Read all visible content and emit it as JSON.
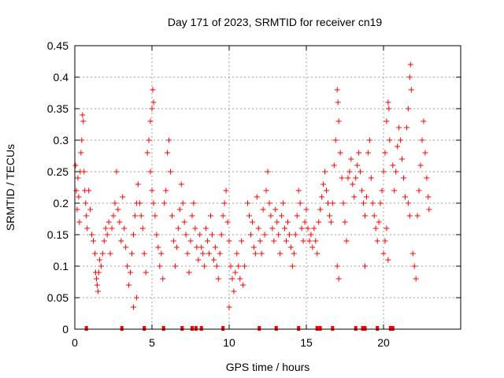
{
  "chart_data": {
    "type": "scatter",
    "title": "Day 171 of 2023, SRMTID for receiver cn19",
    "xlabel": "GPS time / hours",
    "ylabel": "SRMTID / TECUs",
    "xlim": [
      0,
      25
    ],
    "ylim": [
      0,
      0.45
    ],
    "x_ticks": [
      0,
      5,
      10,
      15,
      20
    ],
    "x_tick_labels": [
      "0",
      "5",
      "10",
      "15",
      "20"
    ],
    "y_ticks": [
      0,
      0.05,
      0.1,
      0.15,
      0.2,
      0.25,
      0.3,
      0.35,
      0.4,
      0.45
    ],
    "y_tick_labels": [
      "0",
      "0.05",
      "0.1",
      "0.15",
      "0.2",
      "0.25",
      "0.3",
      "0.35",
      "0.4",
      "0.45"
    ],
    "grid": true,
    "marker": "plus",
    "color": "#ff0000",
    "series": [
      {
        "name": "SRMTID",
        "points": [
          [
            0.05,
            0.26
          ],
          [
            0.1,
            0.22
          ],
          [
            0.15,
            0.19
          ],
          [
            0.2,
            0.24
          ],
          [
            0.25,
            0.21
          ],
          [
            0.3,
            0.17
          ],
          [
            0.35,
            0.25
          ],
          [
            0.4,
            0.28
          ],
          [
            0.45,
            0.3
          ],
          [
            0.5,
            0.34
          ],
          [
            0.55,
            0.33
          ],
          [
            0.6,
            0.25
          ],
          [
            0.65,
            0.22
          ],
          [
            0.7,
            0.2
          ],
          [
            0.75,
            0.18
          ],
          [
            0.8,
            0.16
          ],
          [
            0.9,
            0.22
          ],
          [
            1.0,
            0.19
          ],
          [
            1.1,
            0.15
          ],
          [
            1.2,
            0.14
          ],
          [
            1.3,
            0.12
          ],
          [
            1.35,
            0.09
          ],
          [
            1.4,
            0.08
          ],
          [
            1.45,
            0.07
          ],
          [
            1.5,
            0.06
          ],
          [
            1.55,
            0.09
          ],
          [
            1.6,
            0.11
          ],
          [
            1.7,
            0.1
          ],
          [
            1.8,
            0.12
          ],
          [
            1.9,
            0.14
          ],
          [
            2.0,
            0.16
          ],
          [
            2.1,
            0.15
          ],
          [
            2.2,
            0.17
          ],
          [
            2.3,
            0.12
          ],
          [
            2.4,
            0.16
          ],
          [
            2.5,
            0.18
          ],
          [
            2.6,
            0.2
          ],
          [
            2.7,
            0.25
          ],
          [
            2.8,
            0.19
          ],
          [
            2.9,
            0.17
          ],
          [
            3.0,
            0.14
          ],
          [
            3.1,
            0.21
          ],
          [
            3.2,
            0.16
          ],
          [
            3.3,
            0.13
          ],
          [
            3.4,
            0.1
          ],
          [
            3.5,
            0.07
          ],
          [
            3.6,
            0.09
          ],
          [
            3.7,
            0.12
          ],
          [
            3.8,
            0.15
          ],
          [
            3.9,
            0.18
          ],
          [
            4.0,
            0.2
          ],
          [
            4.1,
            0.23
          ],
          [
            4.2,
            0.2
          ],
          [
            4.3,
            0.18
          ],
          [
            4.4,
            0.16
          ],
          [
            4.5,
            0.12
          ],
          [
            4.6,
            0.09
          ],
          [
            3.8,
            0.035
          ],
          [
            4.0,
            0.05
          ],
          [
            4.7,
            0.28
          ],
          [
            4.8,
            0.3
          ],
          [
            4.9,
            0.33
          ],
          [
            5.0,
            0.35
          ],
          [
            5.05,
            0.38
          ],
          [
            5.1,
            0.36
          ],
          [
            4.9,
            0.25
          ],
          [
            5.0,
            0.22
          ],
          [
            5.1,
            0.2
          ],
          [
            5.2,
            0.18
          ],
          [
            5.3,
            0.15
          ],
          [
            5.4,
            0.13
          ],
          [
            5.5,
            0.1
          ],
          [
            5.6,
            0.12
          ],
          [
            5.7,
            0.08
          ],
          [
            5.8,
            0.2
          ],
          [
            5.9,
            0.22
          ],
          [
            6.0,
            0.28
          ],
          [
            6.1,
            0.3
          ],
          [
            6.2,
            0.25
          ],
          [
            6.3,
            0.18
          ],
          [
            6.4,
            0.14
          ],
          [
            6.5,
            0.1
          ],
          [
            6.6,
            0.13
          ],
          [
            6.7,
            0.16
          ],
          [
            6.8,
            0.19
          ],
          [
            6.9,
            0.23
          ],
          [
            7.0,
            0.2
          ],
          [
            7.1,
            0.17
          ],
          [
            7.2,
            0.15
          ],
          [
            7.3,
            0.12
          ],
          [
            7.4,
            0.09
          ],
          [
            7.5,
            0.14
          ],
          [
            7.6,
            0.18
          ],
          [
            7.7,
            0.2
          ],
          [
            7.8,
            0.16
          ],
          [
            7.9,
            0.13
          ],
          [
            8.0,
            0.11
          ],
          [
            8.1,
            0.15
          ],
          [
            8.2,
            0.13
          ],
          [
            8.3,
            0.12
          ],
          [
            8.4,
            0.1
          ],
          [
            8.5,
            0.16
          ],
          [
            8.6,
            0.14
          ],
          [
            8.7,
            0.12
          ],
          [
            8.8,
            0.18
          ],
          [
            8.9,
            0.15
          ],
          [
            9.0,
            0.11
          ],
          [
            9.1,
            0.13
          ],
          [
            9.2,
            0.1
          ],
          [
            9.3,
            0.08
          ],
          [
            9.4,
            0.12
          ],
          [
            9.5,
            0.15
          ],
          [
            9.6,
            0.18
          ],
          [
            9.7,
            0.2
          ],
          [
            9.8,
            0.22
          ],
          [
            9.9,
            0.17
          ],
          [
            10.0,
            0.14
          ],
          [
            10.1,
            0.1
          ],
          [
            10.2,
            0.08
          ],
          [
            10.3,
            0.06
          ],
          [
            10.4,
            0.09
          ],
          [
            10.5,
            0.12
          ],
          [
            10.6,
            0.1
          ],
          [
            10.7,
            0.08
          ],
          [
            10.8,
            0.14
          ],
          [
            10.9,
            0.07
          ],
          [
            11.0,
            0.1
          ],
          [
            10.0,
            0.035
          ],
          [
            11.2,
            0.2
          ],
          [
            11.3,
            0.18
          ],
          [
            11.4,
            0.15
          ],
          [
            11.5,
            0.17
          ],
          [
            11.6,
            0.13
          ],
          [
            11.7,
            0.12
          ],
          [
            11.8,
            0.21
          ],
          [
            11.9,
            0.16
          ],
          [
            12.0,
            0.14
          ],
          [
            12.1,
            0.12
          ],
          [
            12.2,
            0.19
          ],
          [
            12.3,
            0.15
          ],
          [
            12.4,
            0.22
          ],
          [
            12.5,
            0.25
          ],
          [
            12.6,
            0.2
          ],
          [
            12.7,
            0.18
          ],
          [
            12.8,
            0.16
          ],
          [
            12.9,
            0.14
          ],
          [
            13.0,
            0.19
          ],
          [
            13.1,
            0.17
          ],
          [
            13.2,
            0.15
          ],
          [
            13.3,
            0.12
          ],
          [
            13.4,
            0.18
          ],
          [
            13.5,
            0.2
          ],
          [
            13.6,
            0.16
          ],
          [
            13.7,
            0.14
          ],
          [
            13.8,
            0.17
          ],
          [
            13.9,
            0.15
          ],
          [
            14.0,
            0.13
          ],
          [
            14.1,
            0.1
          ],
          [
            14.2,
            0.12
          ],
          [
            14.3,
            0.15
          ],
          [
            14.4,
            0.18
          ],
          [
            14.5,
            0.22
          ],
          [
            14.6,
            0.2
          ],
          [
            14.7,
            0.16
          ],
          [
            14.8,
            0.14
          ],
          [
            14.9,
            0.17
          ],
          [
            15.0,
            0.19
          ],
          [
            15.1,
            0.16
          ],
          [
            15.2,
            0.14
          ],
          [
            15.3,
            0.15
          ],
          [
            15.4,
            0.13
          ],
          [
            15.5,
            0.16
          ],
          [
            15.6,
            0.14
          ],
          [
            15.7,
            0.12
          ],
          [
            15.8,
            0.17
          ],
          [
            15.9,
            0.19
          ],
          [
            16.0,
            0.21
          ],
          [
            16.1,
            0.23
          ],
          [
            16.2,
            0.25
          ],
          [
            16.3,
            0.22
          ],
          [
            16.4,
            0.2
          ],
          [
            16.5,
            0.18
          ],
          [
            16.6,
            0.17
          ],
          [
            16.7,
            0.2
          ],
          [
            16.8,
            0.26
          ],
          [
            16.9,
            0.3
          ],
          [
            17.0,
            0.38
          ],
          [
            17.05,
            0.36
          ],
          [
            17.1,
            0.33
          ],
          [
            17.2,
            0.28
          ],
          [
            17.3,
            0.24
          ],
          [
            17.4,
            0.2
          ],
          [
            17.5,
            0.17
          ],
          [
            17.6,
            0.14
          ],
          [
            17.0,
            0.1
          ],
          [
            17.1,
            0.08
          ],
          [
            17.7,
            0.24
          ],
          [
            17.8,
            0.25
          ],
          [
            17.9,
            0.27
          ],
          [
            18.0,
            0.23
          ],
          [
            18.1,
            0.21
          ],
          [
            18.2,
            0.24
          ],
          [
            18.3,
            0.26
          ],
          [
            18.4,
            0.28
          ],
          [
            18.5,
            0.25
          ],
          [
            18.6,
            0.22
          ],
          [
            18.7,
            0.2
          ],
          [
            18.8,
            0.18
          ],
          [
            18.9,
            0.21
          ],
          [
            19.0,
            0.28
          ],
          [
            19.1,
            0.3
          ],
          [
            19.2,
            0.24
          ],
          [
            19.3,
            0.2
          ],
          [
            18.8,
            0.1
          ],
          [
            19.4,
            0.18
          ],
          [
            19.5,
            0.16
          ],
          [
            19.6,
            0.14
          ],
          [
            19.7,
            0.17
          ],
          [
            19.8,
            0.2
          ],
          [
            19.9,
            0.22
          ],
          [
            20.0,
            0.25
          ],
          [
            20.1,
            0.28
          ],
          [
            20.2,
            0.33
          ],
          [
            20.3,
            0.36
          ],
          [
            20.35,
            0.35
          ],
          [
            20.4,
            0.3
          ],
          [
            20.0,
            0.12
          ],
          [
            20.1,
            0.14
          ],
          [
            20.2,
            0.16
          ],
          [
            20.3,
            0.11
          ],
          [
            20.6,
            0.26
          ],
          [
            20.7,
            0.22
          ],
          [
            20.8,
            0.25
          ],
          [
            20.9,
            0.29
          ],
          [
            21.0,
            0.32
          ],
          [
            21.1,
            0.3
          ],
          [
            21.2,
            0.27
          ],
          [
            21.3,
            0.24
          ],
          [
            21.4,
            0.21
          ],
          [
            21.5,
            0.32
          ],
          [
            21.6,
            0.35
          ],
          [
            21.7,
            0.4
          ],
          [
            21.75,
            0.42
          ],
          [
            21.8,
            0.38
          ],
          [
            21.6,
            0.2
          ],
          [
            21.7,
            0.18
          ],
          [
            21.9,
            0.12
          ],
          [
            22.0,
            0.1
          ],
          [
            22.1,
            0.08
          ],
          [
            22.2,
            0.18
          ],
          [
            22.3,
            0.22
          ],
          [
            22.4,
            0.26
          ],
          [
            22.5,
            0.3
          ],
          [
            22.6,
            0.33
          ],
          [
            22.7,
            0.28
          ],
          [
            22.8,
            0.24
          ],
          [
            22.9,
            0.21
          ],
          [
            22.95,
            0.19
          ]
        ],
        "zero_points": [
          0.75,
          3.05,
          4.5,
          5.75,
          6.95,
          7.6,
          7.85,
          8.2,
          9.6,
          11.95,
          13.05,
          14.5,
          15.7,
          15.9,
          16.7,
          18.2,
          18.65,
          18.8,
          19.6,
          20.45,
          20.6
        ]
      }
    ]
  }
}
